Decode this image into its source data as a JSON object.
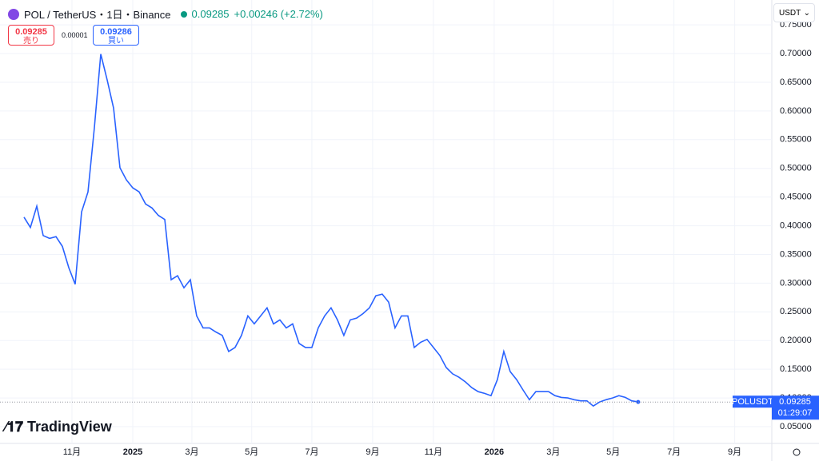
{
  "header": {
    "symbol": "POL / TetherUS・1日・Binance",
    "price": "0.09285",
    "change": "+0.00246 (+2.72%)",
    "sell_price": "0.09285",
    "sell_label": "売り",
    "spread": "0.00001",
    "buy_price": "0.09286",
    "buy_label": "買い",
    "currency": "USDT",
    "logo": "TradingView"
  },
  "chart_data": {
    "type": "line",
    "color": "#2962ff",
    "grid": true,
    "series": [
      {
        "name": "POLUSDT",
        "color": "#2962ff",
        "values": [
          0.415,
          0.397,
          0.434,
          0.383,
          0.378,
          0.381,
          0.364,
          0.327,
          0.298,
          0.424,
          0.459,
          0.571,
          0.699,
          0.654,
          0.605,
          0.501,
          0.48,
          0.466,
          0.459,
          0.438,
          0.431,
          0.418,
          0.411,
          0.306,
          0.313,
          0.292,
          0.306,
          0.243,
          0.222,
          0.222,
          0.215,
          0.209,
          0.181,
          0.188,
          0.209,
          0.243,
          0.229,
          0.243,
          0.257,
          0.229,
          0.236,
          0.222,
          0.229,
          0.195,
          0.188,
          0.188,
          0.222,
          0.243,
          0.257,
          0.236,
          0.209,
          0.236,
          0.239,
          0.247,
          0.257,
          0.278,
          0.281,
          0.267,
          0.222,
          0.243,
          0.243,
          0.188,
          0.197,
          0.202,
          0.188,
          0.174,
          0.153,
          0.142,
          0.136,
          0.128,
          0.118,
          0.111,
          0.108,
          0.104,
          0.132,
          0.181,
          0.146,
          0.132,
          0.114,
          0.097,
          0.111,
          0.111,
          0.111,
          0.104,
          0.101,
          0.1,
          0.097,
          0.095,
          0.095,
          0.086,
          0.093,
          0.097,
          0.1,
          0.104,
          0.101,
          0.095,
          0.093
        ]
      }
    ],
    "last_price": {
      "value": 0.09285,
      "label": "0.09285"
    },
    "countdown": "01:29:07",
    "xlim": [
      -3.75,
      116.9
    ],
    "xticks": [
      {
        "value": 7.5,
        "label": "11月"
      },
      {
        "value": 17,
        "label": "2025"
      },
      {
        "value": 26.25,
        "label": "3月"
      },
      {
        "value": 35.6,
        "label": "5月"
      },
      {
        "value": 45,
        "label": "7月"
      },
      {
        "value": 54.5,
        "label": "9月"
      },
      {
        "value": 64,
        "label": "11月"
      },
      {
        "value": 73.5,
        "label": "2026"
      },
      {
        "value": 82.75,
        "label": "3月"
      },
      {
        "value": 92.1,
        "label": "5月"
      },
      {
        "value": 101.6,
        "label": "7月"
      },
      {
        "value": 111.1,
        "label": "9月"
      }
    ],
    "ylim": [
      0.0208,
      0.7933
    ],
    "yticks": [
      {
        "value": 0.05,
        "label": "0.05000"
      },
      {
        "value": 0.1,
        "label": "0.10000"
      },
      {
        "value": 0.15,
        "label": "0.15000"
      },
      {
        "value": 0.2,
        "label": "0.20000"
      },
      {
        "value": 0.25,
        "label": "0.25000"
      },
      {
        "value": 0.3,
        "label": "0.30000"
      },
      {
        "value": 0.35,
        "label": "0.35000"
      },
      {
        "value": 0.4,
        "label": "0.40000"
      },
      {
        "value": 0.45,
        "label": "0.45000"
      },
      {
        "value": 0.5,
        "label": "0.50000"
      },
      {
        "value": 0.55,
        "label": "0.55000"
      },
      {
        "value": 0.6,
        "label": "0.60000"
      },
      {
        "value": 0.65,
        "label": "0.65000"
      },
      {
        "value": 0.7,
        "label": "0.70000"
      },
      {
        "value": 0.75,
        "label": "0.75000"
      }
    ]
  }
}
